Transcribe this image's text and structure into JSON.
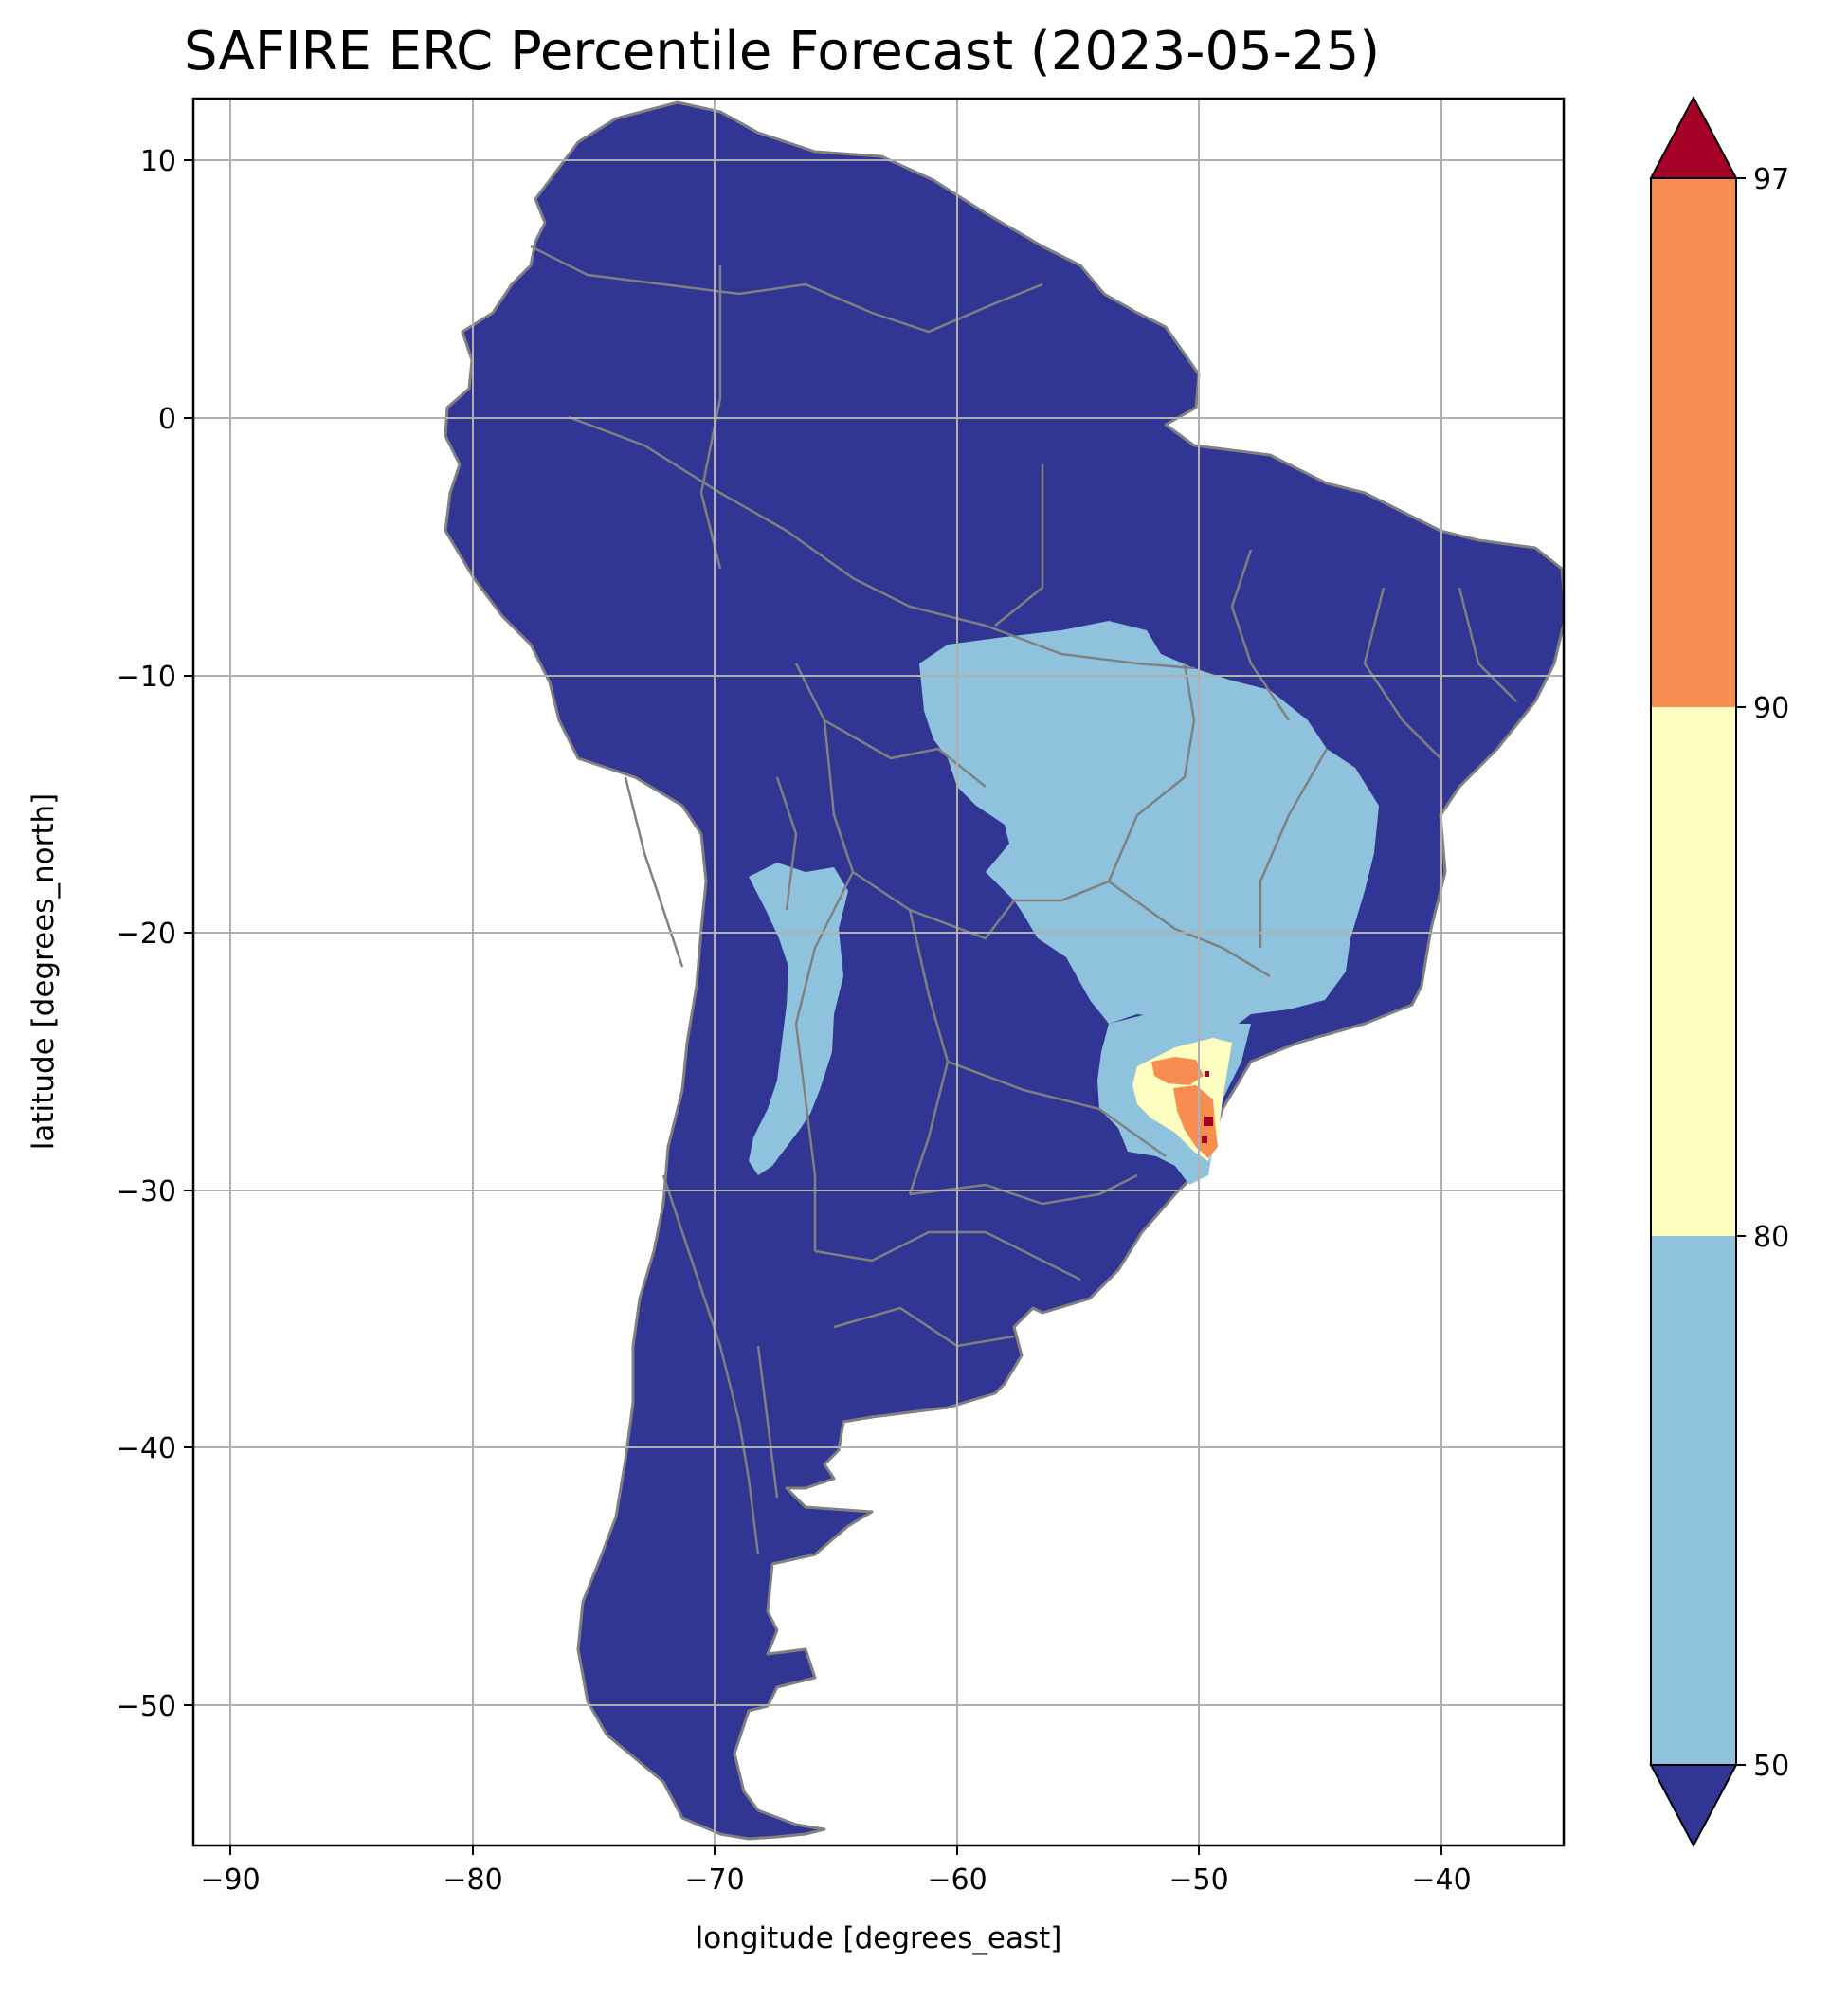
{
  "title": "SAFIRE ERC Percentile Forecast (2023-05-25)",
  "xlabel": "longitude [degrees_east]",
  "ylabel": "latitude [degrees_north]",
  "x_ticks": [
    "−90",
    "−80",
    "−70",
    "−60",
    "−50",
    "−40"
  ],
  "y_ticks": [
    "10",
    "0",
    "−10",
    "−20",
    "−30",
    "−40",
    "−50"
  ],
  "colorbar": {
    "ticks": [
      "97",
      "90",
      "80",
      "50"
    ],
    "bins": [
      {
        "range": "<50",
        "color": "#313695"
      },
      {
        "range": "50-80",
        "color": "#8fc3dd"
      },
      {
        "range": "80-90",
        "color": "#fefec0"
      },
      {
        "range": "90-97",
        "color": "#f88d52"
      },
      {
        "range": ">97",
        "color": "#a50026"
      }
    ]
  },
  "colors": {
    "land_low": "#313695",
    "border": "#808080",
    "grid": "#b0b0b0"
  },
  "map": {
    "lon_range": [
      -91.5,
      -35
    ],
    "lat_range": [
      -55.5,
      12.3
    ],
    "dominant_category": "<50",
    "elevated_region_50_80": "central Brazil and Andean strip",
    "hotspot_90_97_above": "southern Brazil (Santa Catarina)"
  }
}
